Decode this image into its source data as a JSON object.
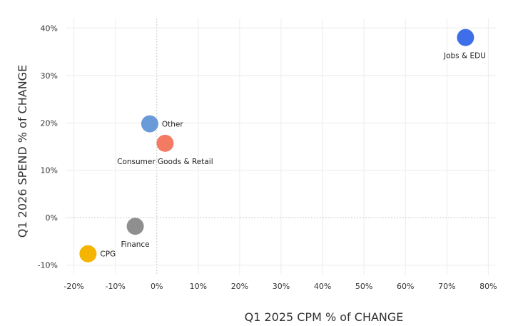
{
  "chart_data": {
    "type": "scatter",
    "title": "",
    "xlabel": "Q1 2025 CPM % of CHANGE",
    "ylabel": "Q1 2026 SPEND % of CHANGE",
    "xlim": [
      -22,
      82
    ],
    "ylim": [
      -12,
      42
    ],
    "x_ticks": [
      -20,
      -10,
      0,
      10,
      20,
      30,
      40,
      50,
      60,
      70,
      80
    ],
    "y_ticks": [
      -10,
      0,
      10,
      20,
      30,
      40
    ],
    "x_tick_labels": [
      "-20%",
      "-10%",
      "0%",
      "10%",
      "20%",
      "30%",
      "40%",
      "50%",
      "60%",
      "70%",
      "80%"
    ],
    "y_tick_labels": [
      "-10%",
      "0%",
      "10%",
      "20%",
      "30%",
      "40%"
    ],
    "grid": true,
    "legend": "none",
    "points": [
      {
        "name": "Jobs & EDU",
        "x": 74.5,
        "y": 38,
        "color": "#3f6fe8",
        "label_pos": "below-left"
      },
      {
        "name": "Other",
        "x": -1.7,
        "y": 19.8,
        "color": "#6a9bd8",
        "label_pos": "right"
      },
      {
        "name": "Consumer Goods & Retail",
        "x": 2.0,
        "y": 15.7,
        "color": "#f47b63",
        "label_pos": "below"
      },
      {
        "name": "Finance",
        "x": -5.2,
        "y": -1.8,
        "color": "#8f8f8f",
        "label_pos": "below"
      },
      {
        "name": "CPG",
        "x": -16.6,
        "y": -7.6,
        "color": "#f4b400",
        "label_pos": "right"
      }
    ]
  }
}
